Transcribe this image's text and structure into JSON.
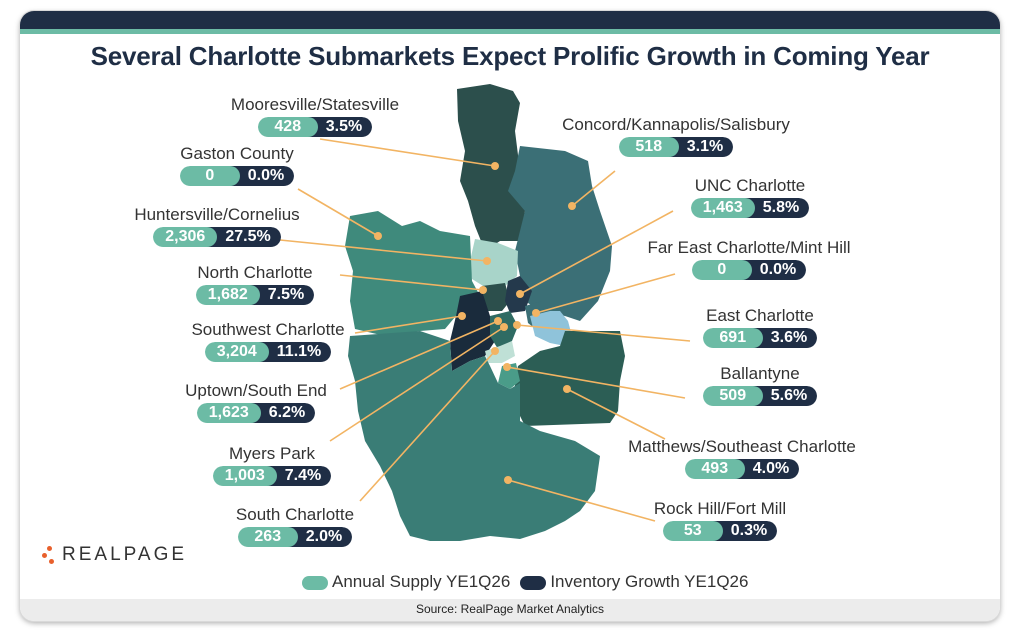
{
  "title": "Several Charlotte Submarkets Expect Prolific Growth in Coming Year",
  "source": "Source: RealPage Market Analytics",
  "logo": {
    "text": "REALPAGE"
  },
  "legend": {
    "supply_label": "Annual Supply YE1Q26",
    "growth_label": "Inventory Growth YE1Q26"
  },
  "colors": {
    "supply": "#6cbba5",
    "growth": "#1f2e45",
    "leader": "#f2b463",
    "brand_dots": "#e8602c"
  },
  "submarkets": [
    {
      "name": "Mooresville/Statesville",
      "supply": "428",
      "growth": "3.5%"
    },
    {
      "name": "Gaston County",
      "supply": "0",
      "growth": "0.0%"
    },
    {
      "name": "Huntersville/Cornelius",
      "supply": "2,306",
      "growth": "27.5%"
    },
    {
      "name": "North Charlotte",
      "supply": "1,682",
      "growth": "7.5%"
    },
    {
      "name": "Southwest Charlotte",
      "supply": "3,204",
      "growth": "11.1%"
    },
    {
      "name": "Uptown/South End",
      "supply": "1,623",
      "growth": "6.2%"
    },
    {
      "name": "Myers Park",
      "supply": "1,003",
      "growth": "7.4%"
    },
    {
      "name": "South Charlotte",
      "supply": "263",
      "growth": "2.0%"
    },
    {
      "name": "Concord/Kannapolis/Salisbury",
      "supply": "518",
      "growth": "3.1%"
    },
    {
      "name": "UNC Charlotte",
      "supply": "1,463",
      "growth": "5.8%"
    },
    {
      "name": "Far East Charlotte/Mint Hill",
      "supply": "0",
      "growth": "0.0%"
    },
    {
      "name": "East Charlotte",
      "supply": "691",
      "growth": "3.6%"
    },
    {
      "name": "Ballantyne",
      "supply": "509",
      "growth": "5.6%"
    },
    {
      "name": "Matthews/Southeast Charlotte",
      "supply": "493",
      "growth": "4.0%"
    },
    {
      "name": "Rock Hill/Fort Mill",
      "supply": "53",
      "growth": "0.3%"
    }
  ]
}
